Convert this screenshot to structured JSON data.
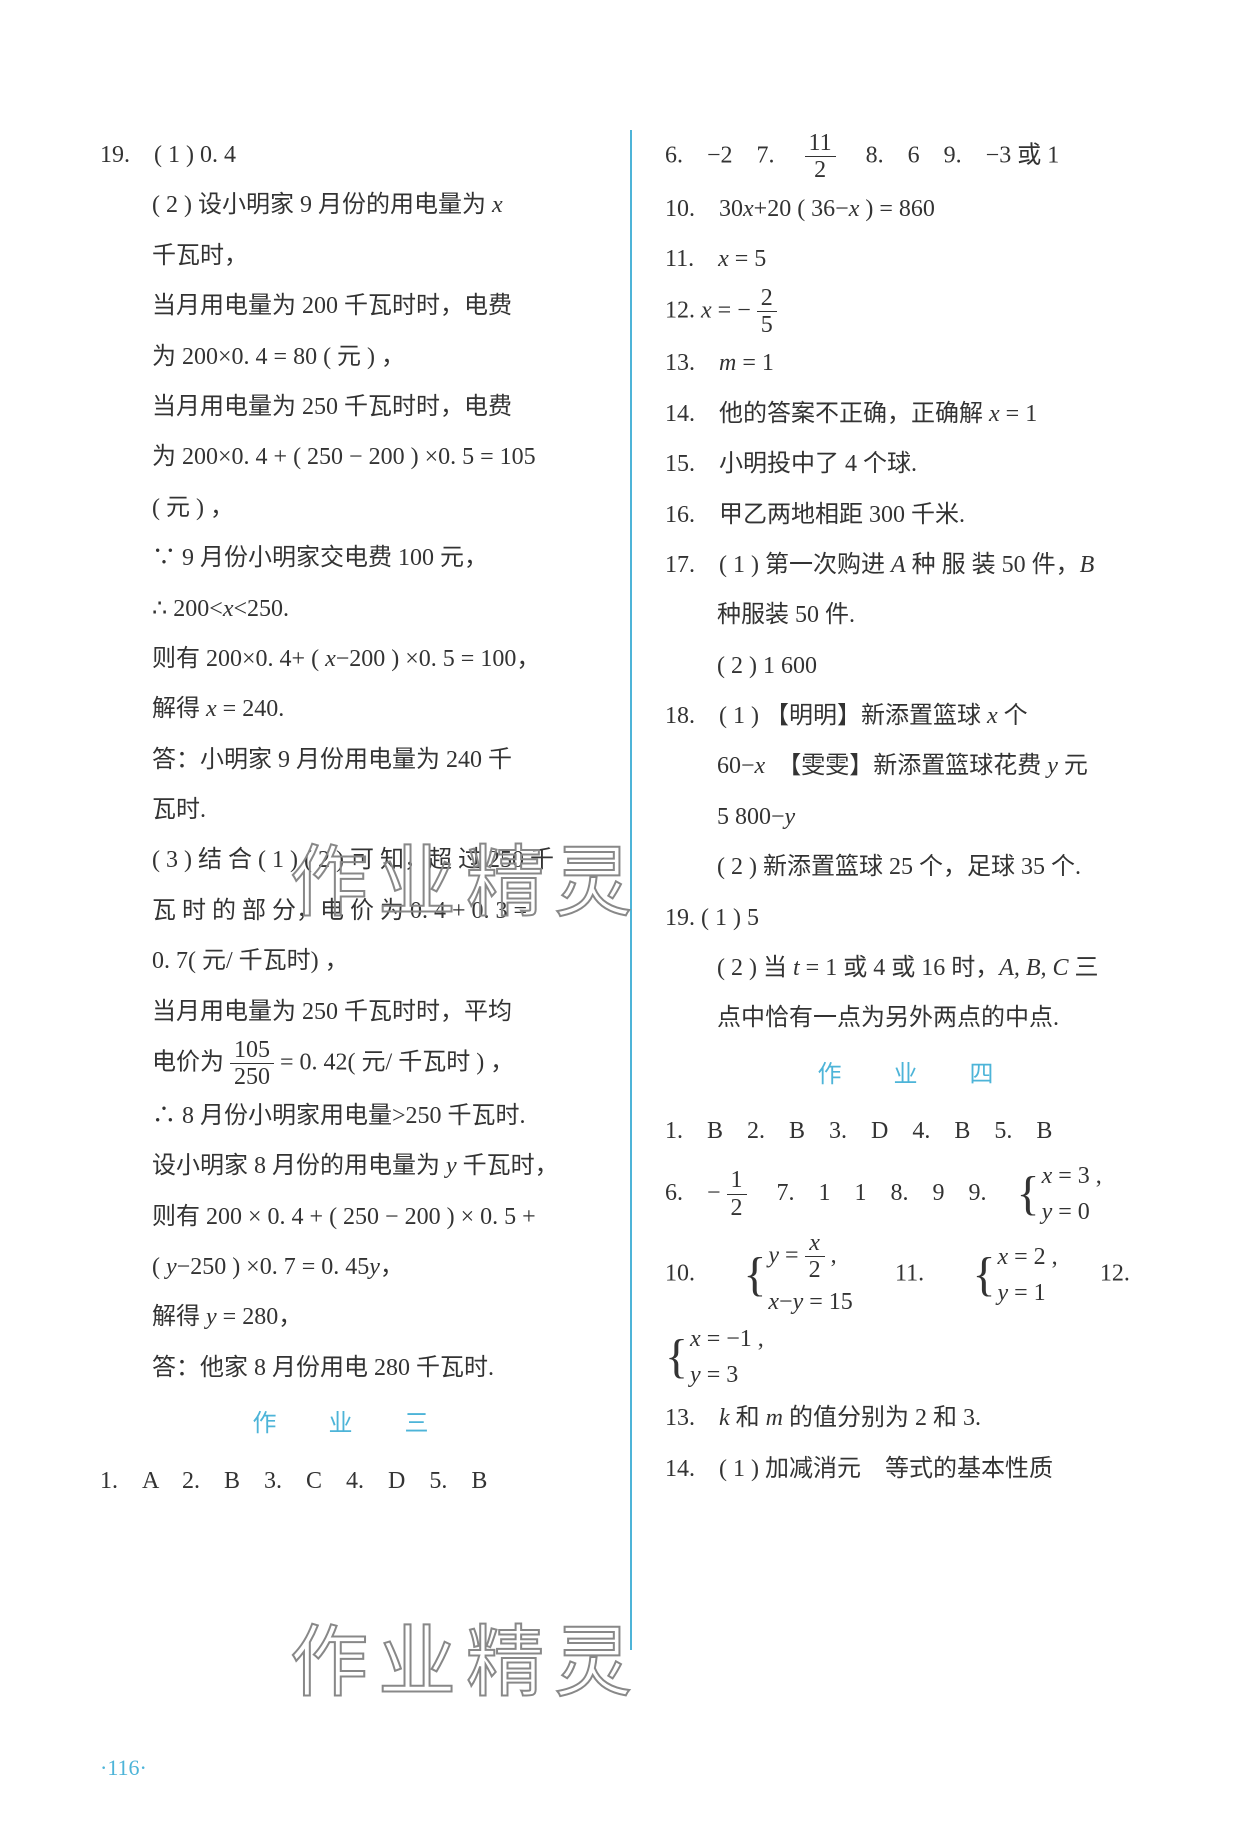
{
  "left": {
    "q19_num": "19.　( 1 ) 0. 4",
    "lines": [
      "( 2 ) 设小明家 9 月份的用电量为 ",
      "千瓦时，",
      "当月用电量为 200 千瓦时时，电费",
      "为 200×0. 4 = 80 ( 元 ) ，",
      "当月用电量为 250 千瓦时时，电费",
      "为 200×0. 4 + ( 250 − 200 ) ×0. 5 = 105",
      "( 元 ) ，",
      "∵ 9 月份小明家交电费 100 元，",
      "∴ 200<",
      "则有 200×0. 4+ ( ",
      "解得 ",
      "答：小明家 9 月份用电量为 240 千",
      "瓦时.",
      "( 3 ) 结 合 ( 1 ) ( 2 ) 可 知，超 过 250 千",
      "瓦 时 的 部 分，电 价 为 0. 4 + 0. 3 =",
      "0. 7( 元/ 千瓦时) ，",
      "当月用电量为 250 千瓦时时，平均",
      "电价为",
      "∴ 8 月份小明家用电量>250 千瓦时.",
      "设小明家 8 月份的用电量为 ",
      "则有 200 × 0. 4 + ( 250 − 200 ) × 0. 5 +",
      "( ",
      "解得 ",
      "答：他家 8 月份用电 280 千瓦时."
    ],
    "vars": {
      "x": "x",
      "y": "y"
    },
    "x_lt": "<250.",
    "eq_200xm": "−200 ) ×0. 5 = 100，",
    "x240": " = 240.",
    "frac105_250": {
      "num": "105",
      "den": "250"
    },
    "eq042": "= 0. 42( 元/ 千瓦时 ) ，",
    "y_ktw": " 千瓦时，",
    "ym250": "−250 ) ×0. 7 = 0. 45",
    "y280": " = 280，",
    "section3": "作　业　三",
    "mc3": "1.　A　2.　B　3.　C　4.　D　5.　B"
  },
  "right": {
    "r1a": "6.　−2　7.　",
    "frac11_2": {
      "num": "11",
      "den": "2"
    },
    "r1b": "　8.　6　9.　−3 或 1",
    "r2": "10.　30",
    "r2b": "+20 ( 36−",
    "r2c": " ) = 860",
    "r3": "11.　",
    "r3b": " = 5",
    "r4": "12.  ",
    "r4b": " = −",
    "frac2_5": {
      "num": "2",
      "den": "5"
    },
    "r5": "13.　",
    "r5b": " = 1",
    "r6": "14.　他的答案不正确，正确解 ",
    "r6b": " = 1",
    "r7": "15.　小明投中了 4 个球.",
    "r8": "16.　甲乙两地相距 300 千米.",
    "r9a": "17.　( 1 ) 第一次购进 ",
    "r9A": "A",
    "r9b": " 种 服 装 50 件，",
    "r9B": "B",
    "r10": "种服装 50 件.",
    "r11": "( 2 ) 1 600",
    "r12a": "18.　( 1 ) 【明明】新添置篮球 ",
    "r12b": " 个",
    "r13a": "60−",
    "r13b": "　【雯雯】新添置篮球花费 ",
    "r13c": " 元",
    "r14": "5 800−",
    "r15": "( 2 ) 新添置篮球 25 个，足球 35 个.",
    "r16": "19. ( 1 ) 5",
    "r17a": "( 2 ) 当 ",
    "r17t": "t",
    "r17b": " = 1 或 4 或 16 时，",
    "r17ABC": "A,  B,  C",
    "r17c": " 三",
    "r18": "点中恰有一点为另外两点的中点.",
    "section4": "作　业　四",
    "mc4": "1.　B　2.　B　3.　D　4.　B　5.　B",
    "r6row_a": "6.　−",
    "frac1_2": {
      "num": "1",
      "den": "2"
    },
    "r6row_b": "　7.　1　1　8.　9　9.　",
    "sys9a": " = 3 ,",
    "sys9b": " = 0",
    "r10row": "10.　",
    "sys10a_num": "x",
    "sys10a_den": "2",
    "sys10a_pre": " = ",
    "sys10a_suf": " ,",
    "sys10b": " = 15",
    "r11row": "　11.　",
    "sys11a": " = 2 ,",
    "sys11b": " = 1",
    "r12row": "　12.　",
    "sys12a": " = −1 ,",
    "sys12b": " = 3",
    "r13row": "13.　",
    "k": "k",
    "and": " 和 ",
    "m": "m",
    "r13tail": " 的值分别为 2 和 3.",
    "r14row": "14.　( 1 ) 加减消元　等式的基本性质"
  },
  "page": "·116·",
  "watermark": "作业精灵"
}
